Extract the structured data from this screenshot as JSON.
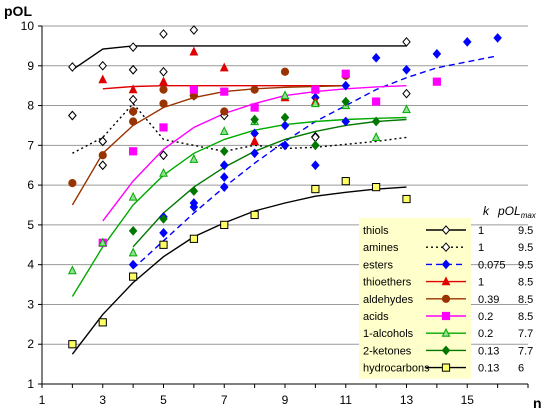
{
  "chart_data": {
    "type": "scatter",
    "title": "",
    "xlabel": "n",
    "ylabel": "pOL",
    "xlim": [
      1,
      17
    ],
    "ylim": [
      1,
      10
    ],
    "xticks": [
      1,
      3,
      5,
      7,
      9,
      11,
      13,
      15
    ],
    "yticks": [
      1,
      2,
      3,
      4,
      5,
      6,
      7,
      8,
      9,
      10
    ],
    "grid": "horizontal",
    "legend_position": "bottom-right",
    "legend_columns": [
      "",
      "k",
      "pOLmax"
    ],
    "legend_header": {
      "k": "k",
      "pol": "pOL",
      "pol_sub": "max"
    },
    "series": [
      {
        "name": "thiols",
        "color": "#000000",
        "marker": "diamond-open",
        "line": "solid",
        "k": "1",
        "pOLmax": "9.5",
        "points": [
          [
            2,
            8.97
          ],
          [
            2,
            7.75
          ],
          [
            3,
            9.0
          ],
          [
            3,
            7.1
          ],
          [
            3,
            6.5
          ],
          [
            4,
            9.47
          ],
          [
            4,
            8.9
          ],
          [
            4,
            8.15
          ],
          [
            4,
            7.85
          ],
          [
            5,
            9.8
          ],
          [
            5,
            8.85
          ],
          [
            5,
            6.75
          ],
          [
            6,
            9.9
          ],
          [
            6,
            8.25
          ],
          [
            7,
            7.75
          ],
          [
            7,
            6.5
          ],
          [
            10,
            7.22
          ],
          [
            13,
            9.6
          ],
          [
            13,
            8.3
          ]
        ],
        "curve": [
          [
            2,
            8.9
          ],
          [
            3,
            9.42
          ],
          [
            4,
            9.5
          ],
          [
            13,
            9.5
          ]
        ]
      },
      {
        "name": "amines",
        "color": "#000000",
        "marker": "diamond-open",
        "line": "dotted",
        "k": "1",
        "pOLmax": "9.5",
        "points": [
          [
            2,
            7.75
          ],
          [
            3,
            7.1
          ],
          [
            3,
            6.5
          ],
          [
            4,
            8.9
          ],
          [
            5,
            6.75
          ],
          [
            6,
            8.25
          ],
          [
            9,
            7.0
          ],
          [
            10,
            7.2
          ]
        ],
        "curve": [
          [
            2,
            6.8
          ],
          [
            3,
            7.2
          ],
          [
            4,
            8.05
          ],
          [
            5,
            7.15
          ],
          [
            7,
            6.85
          ],
          [
            8,
            7.0
          ],
          [
            9,
            6.92
          ],
          [
            10,
            6.95
          ],
          [
            12,
            7.1
          ],
          [
            13,
            7.2
          ]
        ]
      },
      {
        "name": "esters",
        "color": "#0000ff",
        "marker": "diamond-filled",
        "line": "dashed",
        "k": "0.075",
        "pOLmax": "9.5",
        "points": [
          [
            4,
            4.0
          ],
          [
            5,
            5.2
          ],
          [
            5,
            4.8
          ],
          [
            6,
            5.55
          ],
          [
            6,
            5.45
          ],
          [
            7,
            6.5
          ],
          [
            7,
            6.2
          ],
          [
            7,
            5.95
          ],
          [
            8,
            7.3
          ],
          [
            8,
            6.8
          ],
          [
            9,
            7.5
          ],
          [
            9,
            7.0
          ],
          [
            10,
            8.2
          ],
          [
            10,
            6.5
          ],
          [
            11,
            8.5
          ],
          [
            11,
            7.6
          ],
          [
            12,
            9.2
          ],
          [
            13,
            8.9
          ],
          [
            14,
            9.3
          ],
          [
            15,
            9.6
          ],
          [
            16,
            9.7
          ]
        ],
        "curve": [
          [
            4,
            3.9
          ],
          [
            5,
            4.6
          ],
          [
            6,
            5.3
          ],
          [
            7,
            5.95
          ],
          [
            8,
            6.55
          ],
          [
            9,
            7.1
          ],
          [
            10,
            7.6
          ],
          [
            11,
            8.0
          ],
          [
            12,
            8.4
          ],
          [
            13,
            8.7
          ],
          [
            14,
            8.95
          ],
          [
            15,
            9.1
          ],
          [
            16,
            9.25
          ]
        ]
      },
      {
        "name": "thioethers",
        "color": "#e00000",
        "marker": "triangle-filled",
        "line": "solid",
        "k": "1",
        "pOLmax": "8.5",
        "points": [
          [
            3,
            8.65
          ],
          [
            4,
            8.4
          ],
          [
            5,
            8.6
          ],
          [
            6,
            9.35
          ],
          [
            7,
            8.95
          ],
          [
            8,
            7.1
          ],
          [
            9,
            8.2
          ],
          [
            10,
            8.1
          ]
        ],
        "curve": [
          [
            3,
            8.42
          ],
          [
            4,
            8.48
          ],
          [
            5,
            8.5
          ],
          [
            11,
            8.5
          ]
        ]
      },
      {
        "name": "aldehydes",
        "color": "#993300",
        "marker": "circle-filled",
        "line": "solid",
        "k": "0.39",
        "pOLmax": "8.5",
        "points": [
          [
            2,
            6.05
          ],
          [
            3,
            6.75
          ],
          [
            4,
            7.6
          ],
          [
            4,
            7.85
          ],
          [
            5,
            8.05
          ],
          [
            5,
            8.4
          ],
          [
            6,
            8.25
          ],
          [
            7,
            7.85
          ],
          [
            8,
            8.4
          ],
          [
            9,
            8.85
          ],
          [
            10,
            8.4
          ],
          [
            11,
            8.75
          ]
        ],
        "curve": [
          [
            2,
            5.5
          ],
          [
            3,
            6.8
          ],
          [
            4,
            7.5
          ],
          [
            5,
            7.95
          ],
          [
            6,
            8.2
          ],
          [
            7,
            8.35
          ],
          [
            8,
            8.42
          ],
          [
            9,
            8.46
          ],
          [
            11,
            8.5
          ]
        ]
      },
      {
        "name": "acids",
        "color": "#ff00ff",
        "marker": "square-filled",
        "line": "solid",
        "k": "0.2",
        "pOLmax": "8.5",
        "points": [
          [
            3,
            4.55
          ],
          [
            4,
            6.85
          ],
          [
            5,
            7.45
          ],
          [
            6,
            8.4
          ],
          [
            7,
            8.35
          ],
          [
            8,
            7.95
          ],
          [
            10,
            8.4
          ],
          [
            11,
            8.8
          ],
          [
            12,
            8.1
          ],
          [
            14,
            8.6
          ]
        ],
        "curve": [
          [
            3,
            5.1
          ],
          [
            4,
            6.1
          ],
          [
            5,
            6.9
          ],
          [
            6,
            7.45
          ],
          [
            7,
            7.8
          ],
          [
            8,
            8.05
          ],
          [
            9,
            8.25
          ],
          [
            10,
            8.35
          ],
          [
            11,
            8.42
          ],
          [
            12,
            8.47
          ],
          [
            13,
            8.5
          ]
        ]
      },
      {
        "name": "1-alcohols",
        "color": "#00aa00",
        "marker": "triangle-open-filled",
        "line": "solid",
        "k": "0.2",
        "pOLmax": "7.7",
        "points": [
          [
            2,
            3.85
          ],
          [
            3,
            4.55
          ],
          [
            4,
            4.3
          ],
          [
            4,
            5.7
          ],
          [
            5,
            6.3
          ],
          [
            6,
            6.65
          ],
          [
            7,
            7.35
          ],
          [
            8,
            7.6
          ],
          [
            9,
            8.25
          ],
          [
            10,
            8.05
          ],
          [
            11,
            8.0
          ],
          [
            12,
            7.2
          ],
          [
            13,
            7.9
          ]
        ],
        "curve": [
          [
            2,
            3.2
          ],
          [
            3,
            4.45
          ],
          [
            4,
            5.5
          ],
          [
            5,
            6.25
          ],
          [
            6,
            6.8
          ],
          [
            7,
            7.15
          ],
          [
            8,
            7.38
          ],
          [
            9,
            7.52
          ],
          [
            10,
            7.6
          ],
          [
            11,
            7.65
          ],
          [
            12,
            7.68
          ],
          [
            13,
            7.7
          ]
        ]
      },
      {
        "name": "2-ketones",
        "color": "#007700",
        "marker": "diamond-filled",
        "line": "solid",
        "k": "0.13",
        "pOLmax": "7.7",
        "points": [
          [
            4,
            4.85
          ],
          [
            5,
            5.15
          ],
          [
            6,
            5.85
          ],
          [
            7,
            6.85
          ],
          [
            8,
            7.65
          ],
          [
            9,
            7.7
          ],
          [
            10,
            7.0
          ],
          [
            11,
            8.1
          ],
          [
            12,
            7.6
          ]
        ],
        "curve": [
          [
            4,
            4.45
          ],
          [
            5,
            5.3
          ],
          [
            6,
            5.95
          ],
          [
            7,
            6.45
          ],
          [
            8,
            6.85
          ],
          [
            9,
            7.15
          ],
          [
            10,
            7.35
          ],
          [
            11,
            7.5
          ],
          [
            12,
            7.6
          ],
          [
            13,
            7.65
          ]
        ]
      },
      {
        "name": "hydrocarbons",
        "color": "#000000",
        "fill": "#ffff66",
        "marker": "square-open-filled",
        "line": "solid",
        "k": "0.13",
        "pOLmax": "6",
        "points": [
          [
            2,
            2.0
          ],
          [
            3,
            2.55
          ],
          [
            4,
            3.7
          ],
          [
            5,
            4.5
          ],
          [
            6,
            4.65
          ],
          [
            7,
            5.0
          ],
          [
            8,
            5.25
          ],
          [
            10,
            5.9
          ],
          [
            11,
            6.1
          ],
          [
            12,
            5.95
          ],
          [
            13,
            5.65
          ]
        ],
        "curve": [
          [
            2,
            1.75
          ],
          [
            3,
            2.75
          ],
          [
            4,
            3.55
          ],
          [
            5,
            4.2
          ],
          [
            6,
            4.7
          ],
          [
            7,
            5.05
          ],
          [
            8,
            5.35
          ],
          [
            9,
            5.55
          ],
          [
            10,
            5.72
          ],
          [
            11,
            5.82
          ],
          [
            12,
            5.9
          ],
          [
            13,
            5.95
          ]
        ]
      }
    ]
  }
}
